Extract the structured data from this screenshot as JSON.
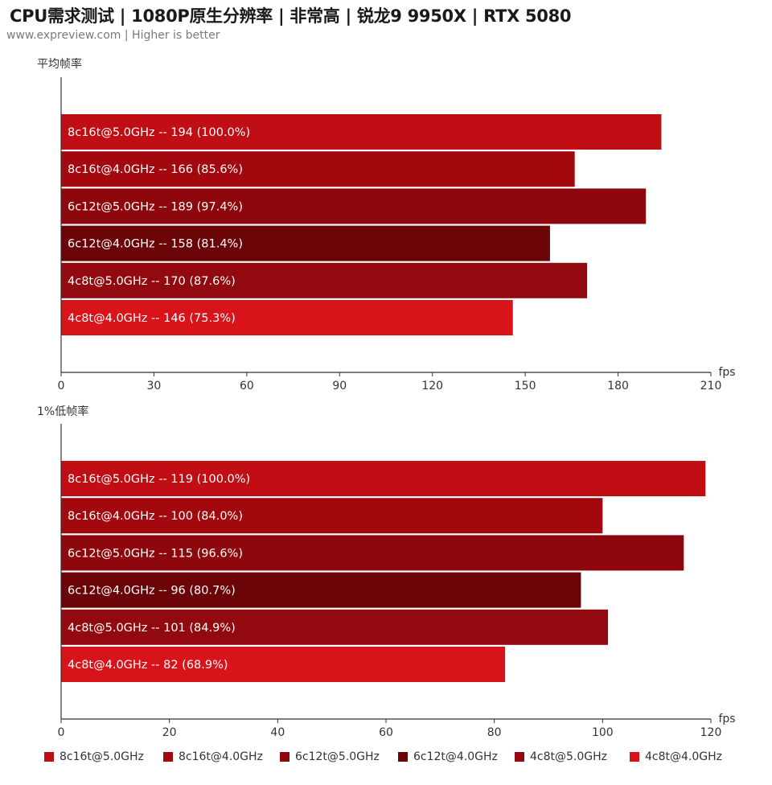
{
  "header": {
    "title": "CPU需求测试 | 1080P原生分辨率 | 非常高 | 锐龙9 9950X | RTX 5080",
    "subtitle": "www.expreview.com | Higher is better"
  },
  "colors": {
    "8c16t@5.0GHz": "#c00e14",
    "8c16t@4.0GHz": "#a3080e",
    "6c12t@5.0GHz": "#8e070c",
    "6c12t@4.0GHz": "#6b0407",
    "4c8t@5.0GHz": "#920a0f",
    "4c8t@4.0GHz": "#d8131a"
  },
  "legend": [
    {
      "label": "8c16t@5.0GHz",
      "color": "#c00e14"
    },
    {
      "label": "8c16t@4.0GHz",
      "color": "#a3080e"
    },
    {
      "label": "6c12t@5.0GHz",
      "color": "#8e070c"
    },
    {
      "label": "6c12t@4.0GHz",
      "color": "#6b0407"
    },
    {
      "label": "4c8t@5.0GHz",
      "color": "#920a0f"
    },
    {
      "label": "4c8t@4.0GHz",
      "color": "#d8131a"
    }
  ],
  "chart_data": [
    {
      "type": "bar",
      "orientation": "horizontal",
      "title": "平均帧率",
      "xlabel": "fps",
      "xlim": [
        0,
        210
      ],
      "xticks": [
        0,
        30,
        60,
        90,
        120,
        150,
        180,
        210
      ],
      "categories": [
        "8c16t@5.0GHz",
        "8c16t@4.0GHz",
        "6c12t@5.0GHz",
        "6c12t@4.0GHz",
        "4c8t@5.0GHz",
        "4c8t@4.0GHz"
      ],
      "values": [
        194,
        166,
        189,
        158,
        170,
        146
      ],
      "labels": [
        "8c16t@5.0GHz  --  194 (100.0%)",
        "8c16t@4.0GHz  --  166 (85.6%)",
        "6c12t@5.0GHz  --  189 (97.4%)",
        "6c12t@4.0GHz  --  158 (81.4%)",
        "4c8t@5.0GHz  --  170 (87.6%)",
        "4c8t@4.0GHz  --  146 (75.3%)"
      ]
    },
    {
      "type": "bar",
      "orientation": "horizontal",
      "title": "1%低帧率",
      "xlabel": "fps",
      "xlim": [
        0,
        120
      ],
      "xticks": [
        0,
        20,
        40,
        60,
        80,
        100,
        120
      ],
      "categories": [
        "8c16t@5.0GHz",
        "8c16t@4.0GHz",
        "6c12t@5.0GHz",
        "6c12t@4.0GHz",
        "4c8t@5.0GHz",
        "4c8t@4.0GHz"
      ],
      "values": [
        119,
        100,
        115,
        96,
        101,
        82
      ],
      "labels": [
        "8c16t@5.0GHz  --  119 (100.0%)",
        "8c16t@4.0GHz  --  100 (84.0%)",
        "6c12t@5.0GHz  --  115 (96.6%)",
        "6c12t@4.0GHz  --  96 (80.7%)",
        "4c8t@5.0GHz  --  101 (84.9%)",
        "4c8t@4.0GHz  --  82 (68.9%)"
      ]
    }
  ]
}
